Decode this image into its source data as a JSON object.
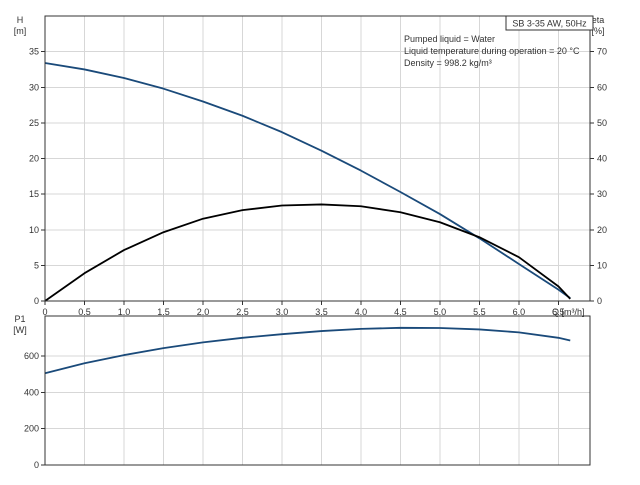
{
  "chart_data": [
    {
      "type": "line",
      "title": "SB 3-35 AW, 50Hz",
      "annotations": [
        "Pumped liquid = Water",
        "Liquid temperature during operation = 20 °C",
        "Density = 998.2 kg/m³"
      ],
      "xlabel": "Q [m³/h]",
      "ylabel": "H",
      "ylabel_unit": "[m]",
      "y2label": "eta",
      "y2label_unit": "[%]",
      "xlim": [
        0,
        6.9
      ],
      "ylim": [
        0,
        40
      ],
      "y2lim": [
        0,
        80
      ],
      "xticks": [
        "0",
        "0.5",
        "1.0",
        "1.5",
        "2.0",
        "2.5",
        "3.0",
        "3.5",
        "4.0",
        "4.5",
        "5.0",
        "5.5",
        "6.0",
        "6.5"
      ],
      "yticks": [
        "0",
        "5",
        "10",
        "15",
        "20",
        "25",
        "30",
        "35"
      ],
      "y2ticks": [
        "0",
        "10",
        "20",
        "30",
        "40",
        "50",
        "60",
        "70"
      ],
      "grid": true,
      "series": [
        {
          "axis": "left",
          "color": "#1a4a7a",
          "x": [
            0,
            0.5,
            1.0,
            1.5,
            2.0,
            2.5,
            3.0,
            3.5,
            4.0,
            4.5,
            5.0,
            5.5,
            6.0,
            6.5,
            6.65
          ],
          "y": [
            33.4,
            32.5,
            31.3,
            29.8,
            28.0,
            26.0,
            23.7,
            21.1,
            18.3,
            15.3,
            12.2,
            8.8,
            5.2,
            1.6,
            0.4
          ]
        },
        {
          "axis": "right",
          "color": "#000000",
          "x": [
            0,
            0.5,
            1.0,
            1.5,
            2.0,
            2.5,
            3.0,
            3.5,
            4.0,
            4.5,
            5.0,
            5.5,
            6.0,
            6.5,
            6.65
          ],
          "y": [
            0,
            7.8,
            14.3,
            19.3,
            23.1,
            25.5,
            26.8,
            27.1,
            26.6,
            24.9,
            22.1,
            17.9,
            12.3,
            4.1,
            0.6
          ]
        }
      ]
    },
    {
      "type": "line",
      "ylabel": "P1",
      "ylabel_unit": "[W]",
      "xlim": [
        0,
        6.9
      ],
      "ylim": [
        0,
        820
      ],
      "yticks": [
        "0",
        "200",
        "400",
        "600"
      ],
      "grid": true,
      "series": [
        {
          "color": "#1a4a7a",
          "x": [
            0,
            0.5,
            1.0,
            1.5,
            2.0,
            2.5,
            3.0,
            3.5,
            4.0,
            4.5,
            5.0,
            5.5,
            6.0,
            6.5,
            6.65
          ],
          "y": [
            505,
            560,
            605,
            643,
            675,
            700,
            720,
            737,
            749,
            755,
            754,
            746,
            730,
            700,
            685
          ]
        }
      ]
    }
  ]
}
